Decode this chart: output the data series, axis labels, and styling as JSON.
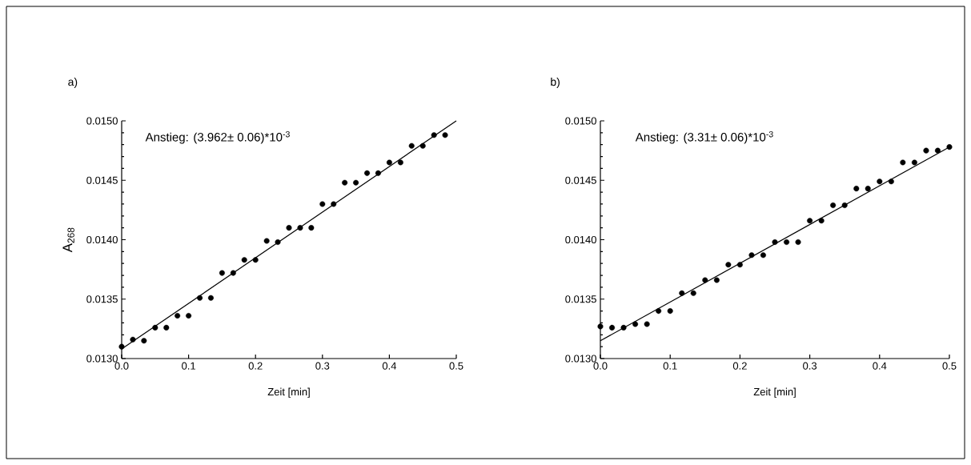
{
  "chart_data": [
    {
      "type": "scatter",
      "title": "a)",
      "xlabel": "Zeit [min]",
      "ylabel": "A$_{268}$",
      "annotations": [
        "Anstieg: (3.962± 0.06)*10$^{-3}$"
      ],
      "xlim": [
        0,
        0.5
      ],
      "ylim": [
        0.013,
        0.015
      ],
      "xticks": [
        {
          "value": 0,
          "label": "0.0"
        },
        {
          "value": 0.1,
          "label": "0.1"
        },
        {
          "value": 0.2,
          "label": "0.2"
        },
        {
          "value": 0.3,
          "label": "0.3"
        },
        {
          "value": 0.4,
          "label": "0.4"
        },
        {
          "value": 0.5,
          "label": "0.5"
        }
      ],
      "yticks": [
        {
          "value": 0.013,
          "label": "0.0130"
        },
        {
          "value": 0.0135,
          "label": "0.0135"
        },
        {
          "value": 0.014,
          "label": "0.0140"
        },
        {
          "value": 0.0145,
          "label": "0.0145"
        },
        {
          "value": 0.015,
          "label": "0.0150"
        }
      ],
      "series": [
        {
          "marker": "circle",
          "color": "#000000",
          "x": [
            0,
            0.0167,
            0.0333,
            0.05,
            0.0667,
            0.0833,
            0.1,
            0.1167,
            0.1333,
            0.15,
            0.1667,
            0.1833,
            0.2,
            0.2167,
            0.2333,
            0.25,
            0.2667,
            0.2833,
            0.3,
            0.3167,
            0.3333,
            0.35,
            0.3667,
            0.3833,
            0.4,
            0.4167,
            0.4333,
            0.45,
            0.4667,
            0.4833
          ],
          "values": [
            0.0131,
            0.01316,
            0.01315,
            0.01326,
            0.01326,
            0.01336,
            0.01336,
            0.01351,
            0.01351,
            0.01372,
            0.01372,
            0.01383,
            0.01383,
            0.01399,
            0.01398,
            0.0141,
            0.0141,
            0.0141,
            0.0143,
            0.0143,
            0.01448,
            0.01448,
            0.01456,
            0.01456,
            0.01465,
            0.01465,
            0.01479,
            0.01479,
            0.01488,
            0.01488
          ]
        },
        {
          "type": "line",
          "marker": "none",
          "line_style": "solid",
          "color": "#000000",
          "x": [
            0,
            0.5
          ],
          "values": [
            0.01308,
            0.015
          ]
        }
      ]
    },
    {
      "type": "scatter",
      "title": "b)",
      "xlabel": "Zeit [min]",
      "annotations": [
        "Anstieg: (3.31± 0.06)*10$^{-3}$"
      ],
      "xlim": [
        0,
        0.5
      ],
      "ylim": [
        0.013,
        0.015
      ],
      "xticks": [
        {
          "value": 0,
          "label": "0.0"
        },
        {
          "value": 0.1,
          "label": "0.1"
        },
        {
          "value": 0.2,
          "label": "0.2"
        },
        {
          "value": 0.3,
          "label": "0.3"
        },
        {
          "value": 0.4,
          "label": "0.4"
        },
        {
          "value": 0.5,
          "label": "0.5"
        }
      ],
      "yticks": [
        {
          "value": 0.013,
          "label": "0.0130"
        },
        {
          "value": 0.0135,
          "label": "0.0135"
        },
        {
          "value": 0.014,
          "label": "0.0140"
        },
        {
          "value": 0.0145,
          "label": "0.0145"
        },
        {
          "value": 0.015,
          "label": "0.0150"
        }
      ],
      "series": [
        {
          "marker": "circle",
          "color": "#000000",
          "x": [
            0,
            0.0167,
            0.0333,
            0.05,
            0.0667,
            0.0833,
            0.1,
            0.1167,
            0.1333,
            0.15,
            0.1667,
            0.1833,
            0.2,
            0.2167,
            0.2333,
            0.25,
            0.2667,
            0.2833,
            0.3,
            0.3167,
            0.3333,
            0.35,
            0.3667,
            0.3833,
            0.4,
            0.4167,
            0.4333,
            0.45,
            0.4667,
            0.4833,
            0.5
          ],
          "values": [
            0.01327,
            0.01326,
            0.01326,
            0.01329,
            0.01329,
            0.0134,
            0.0134,
            0.01355,
            0.01355,
            0.01366,
            0.01366,
            0.01379,
            0.01379,
            0.01387,
            0.01387,
            0.01398,
            0.01398,
            0.01398,
            0.01416,
            0.01416,
            0.01429,
            0.01429,
            0.01443,
            0.01443,
            0.01449,
            0.01449,
            0.01465,
            0.01465,
            0.01475,
            0.01475,
            0.01478
          ]
        },
        {
          "type": "line",
          "marker": "none",
          "line_style": "solid",
          "color": "#000000",
          "x": [
            0,
            0.5
          ],
          "values": [
            0.01315,
            0.01478
          ]
        }
      ]
    }
  ]
}
